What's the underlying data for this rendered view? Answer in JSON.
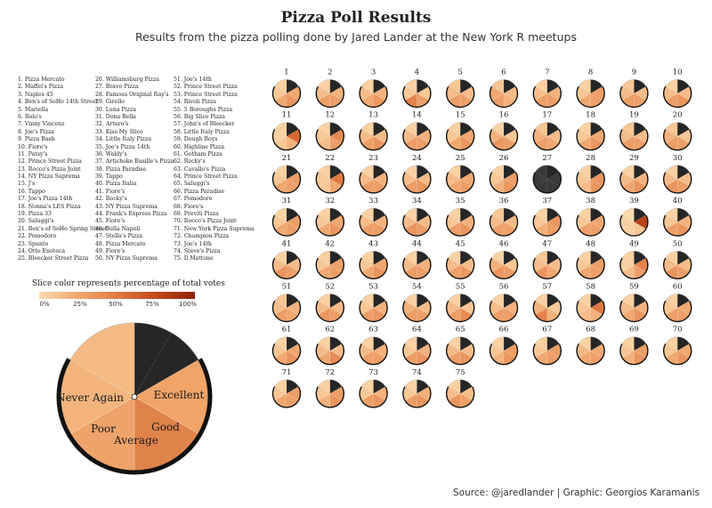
{
  "title": "Pizza Poll Results",
  "subtitle": "Results from the pizza polling done by Jared Lander at the New York R meetups",
  "caption": "Source: @jaredlander | Graphic: Georgios Karamanis",
  "legend": {
    "title": "Slice color represents percentage of total votes",
    "ticks": [
      "0%",
      "25%",
      "50%",
      "75%",
      "100%"
    ],
    "colors": [
      "#fddbb0",
      "#f0a870",
      "#e17a42",
      "#c24a1c",
      "#8f2206"
    ]
  },
  "colors": {
    "empty": "#262626",
    "low": "#fddbb0",
    "high": "#8f2206"
  },
  "places": [
    "1. Pizza Mercato",
    "2. Maffei's Pizza",
    "3. Naples 45",
    "4. Ben's of SoHo 14th Street",
    "5. Mariella",
    "6. Rolo's",
    "7. Vinny Vincenz",
    "8. Joe's Pizza",
    "9. Pizza Bash",
    "10. Fiore's",
    "11. Patsy's",
    "12. Prince Street Pizza",
    "13. Rocco's Pizza Joint",
    "14. NY Pizza Suprema",
    "15. J's",
    "16. Tappo",
    "17. Joe's Pizza 14th",
    "18. Nonna's LES Pizza",
    "19. Pizza 33",
    "20. Saluggi's",
    "21. Ben's of SoHo Spring Street",
    "22. Pomodoro",
    "23. Spunto",
    "24. Otto Enoteca",
    "25. Bleecker Street Pizza",
    "26. Williamsburg Pizza",
    "27. Bravo Pizza",
    "28. Famous Original Ray's",
    "29. Girello",
    "30. Luna Pizza",
    "31. Dona Bella",
    "32. Arturo's",
    "33. Kiss My Slice",
    "34. Little Italy Pizza",
    "35. Joe's Pizza 14th",
    "36. Waldy's",
    "37. Artichoke Basille's Pizza",
    "38. Pizza Paradise",
    "39. Tappo",
    "40. Pizza Italia",
    "41. Fiore's",
    "42. Rocky's",
    "43. NY Pizza Suprema",
    "44. Frank's Express Pizza",
    "45. Fiore's",
    "46. Bella Napoli",
    "47. Stella's Pizza",
    "48. Pizza Mercato",
    "49. Fiore's",
    "50. NY Pizza Suprema",
    "51. Joe's 14th",
    "52. Prince Street Pizza",
    "53. Prince Street Pizza",
    "54. Rivoli Pizza",
    "55. 5 Boroughs Pizza",
    "56. Big Slice Pizza",
    "57. John's of Bleecker",
    "58. Little Italy Pizza",
    "59. Dough Boys",
    "60. Highline Pizza",
    "61. Gotham Pizza",
    "62. Rocky's",
    "63. Cavallo's Pizza",
    "64. Prince Street Pizza",
    "65. Saluggi's",
    "66. Pizza Paradise",
    "67. Pomodoro",
    "68. Fiore's",
    "69. Previti Pizza",
    "70. Rocco's Pizza Joint",
    "71. New York Pizza Suprema",
    "72. Champion Pizza",
    "73. Joe's 14th",
    "74. Steve's Pizza",
    "75. Il Mattone"
  ],
  "key_pie": {
    "labels": {
      "excellent": "Excellent",
      "good": "Good",
      "average": "Average",
      "poor": "Poor",
      "never_again": "Never Again"
    }
  },
  "chart_data": {
    "type": "pie",
    "categories": [
      "Excellent",
      "Good",
      "Average",
      "Poor",
      "Never Again"
    ],
    "pies": [
      {
        "n": 1,
        "values": [
          0.25,
          0.35,
          0.25,
          0.1,
          0.05
        ]
      },
      {
        "n": 2,
        "values": [
          0.2,
          0.3,
          0.3,
          0.15,
          0.05
        ]
      },
      {
        "n": 3,
        "values": [
          0.2,
          0.35,
          0.25,
          0.15,
          0.05
        ]
      },
      {
        "n": 4,
        "values": [
          0.1,
          0.3,
          0.45,
          0.1,
          0.05
        ]
      },
      {
        "n": 5,
        "values": [
          0.15,
          0.3,
          0.3,
          0.15,
          0.1
        ]
      },
      {
        "n": 6,
        "values": [
          0.15,
          0.2,
          0.3,
          0.25,
          0.1
        ]
      },
      {
        "n": 7,
        "values": [
          0.2,
          0.3,
          0.3,
          0.15,
          0.05
        ]
      },
      {
        "n": 8,
        "values": [
          0.3,
          0.3,
          0.25,
          0.1,
          0.05
        ]
      },
      {
        "n": 9,
        "values": [
          0.15,
          0.3,
          0.3,
          0.15,
          0.1
        ]
      },
      {
        "n": 10,
        "values": [
          0.15,
          0.35,
          0.3,
          0.15,
          0.05
        ]
      },
      {
        "n": 11,
        "values": [
          0.6,
          0.2,
          0.1,
          0.05,
          0.05
        ]
      },
      {
        "n": 12,
        "values": [
          0.4,
          0.3,
          0.15,
          0.1,
          0.05
        ]
      },
      {
        "n": 13,
        "values": [
          0.15,
          0.35,
          0.3,
          0.15,
          0.05
        ]
      },
      {
        "n": 14,
        "values": [
          0.2,
          0.3,
          0.3,
          0.15,
          0.05
        ]
      },
      {
        "n": 15,
        "values": [
          0.25,
          0.35,
          0.25,
          0.1,
          0.05
        ]
      },
      {
        "n": 16,
        "values": [
          0.1,
          0.3,
          0.35,
          0.2,
          0.05
        ]
      },
      {
        "n": 17,
        "values": [
          0.15,
          0.25,
          0.3,
          0.2,
          0.1
        ]
      },
      {
        "n": 18,
        "values": [
          0.25,
          0.35,
          0.25,
          0.1,
          0.05
        ]
      },
      {
        "n": 19,
        "values": [
          0.15,
          0.3,
          0.3,
          0.15,
          0.1
        ]
      },
      {
        "n": 20,
        "values": [
          0.1,
          0.3,
          0.3,
          0.2,
          0.1
        ]
      },
      {
        "n": 21,
        "values": [
          0.3,
          0.3,
          0.25,
          0.1,
          0.05
        ]
      },
      {
        "n": 22,
        "values": [
          0.5,
          0.25,
          0.1,
          0.1,
          0.05
        ]
      },
      {
        "n": 23,
        "values": [
          0.2,
          0.3,
          0.3,
          0.15,
          0.05
        ]
      },
      {
        "n": 24,
        "values": [
          0.15,
          0.35,
          0.3,
          0.15,
          0.05
        ]
      },
      {
        "n": 25,
        "values": [
          0.25,
          0.3,
          0.25,
          0.15,
          0.05
        ]
      },
      {
        "n": 26,
        "values": [
          0.3,
          0.35,
          0.2,
          0.1,
          0.05
        ]
      },
      {
        "n": 27,
        "values": [
          0,
          0,
          0,
          0,
          0
        ]
      },
      {
        "n": 28,
        "values": [
          0.35,
          0.35,
          0.15,
          0.1,
          0.05
        ]
      },
      {
        "n": 29,
        "values": [
          0.2,
          0.35,
          0.25,
          0.15,
          0.05
        ]
      },
      {
        "n": 30,
        "values": [
          0.15,
          0.3,
          0.35,
          0.15,
          0.05
        ]
      },
      {
        "n": 31,
        "values": [
          0.3,
          0.3,
          0.25,
          0.1,
          0.05
        ]
      },
      {
        "n": 32,
        "values": [
          0.25,
          0.35,
          0.25,
          0.1,
          0.05
        ]
      },
      {
        "n": 33,
        "values": [
          0.2,
          0.3,
          0.3,
          0.15,
          0.05
        ]
      },
      {
        "n": 34,
        "values": [
          0.15,
          0.3,
          0.35,
          0.15,
          0.05
        ]
      },
      {
        "n": 35,
        "values": [
          0.2,
          0.35,
          0.3,
          0.1,
          0.05
        ]
      },
      {
        "n": 36,
        "values": [
          0.15,
          0.3,
          0.3,
          0.15,
          0.1
        ]
      },
      {
        "n": 37,
        "values": [
          0.35,
          0.3,
          0.2,
          0.1,
          0.05
        ]
      },
      {
        "n": 38,
        "values": [
          0.25,
          0.3,
          0.3,
          0.1,
          0.05
        ]
      },
      {
        "n": 39,
        "values": [
          0.8,
          0.1,
          0.05,
          0.05,
          0
        ]
      },
      {
        "n": 40,
        "values": [
          0.2,
          0.35,
          0.3,
          0.1,
          0.05
        ]
      },
      {
        "n": 41,
        "values": [
          0.15,
          0.3,
          0.35,
          0.15,
          0.05
        ]
      },
      {
        "n": 42,
        "values": [
          0.3,
          0.3,
          0.25,
          0.1,
          0.05
        ]
      },
      {
        "n": 43,
        "values": [
          0.25,
          0.35,
          0.25,
          0.1,
          0.05
        ]
      },
      {
        "n": 44,
        "values": [
          0.2,
          0.3,
          0.3,
          0.15,
          0.05
        ]
      },
      {
        "n": 45,
        "values": [
          0.15,
          0.35,
          0.3,
          0.15,
          0.05
        ]
      },
      {
        "n": 46,
        "values": [
          0.1,
          0.3,
          0.35,
          0.2,
          0.05
        ]
      },
      {
        "n": 47,
        "values": [
          0.15,
          0.25,
          0.35,
          0.15,
          0.1
        ]
      },
      {
        "n": 48,
        "values": [
          0.3,
          0.3,
          0.25,
          0.1,
          0.05
        ]
      },
      {
        "n": 49,
        "values": [
          0.45,
          0.3,
          0.15,
          0.05,
          0.05
        ]
      },
      {
        "n": 50,
        "values": [
          0.15,
          0.3,
          0.35,
          0.15,
          0.05
        ]
      },
      {
        "n": 51,
        "values": [
          0.2,
          0.25,
          0.3,
          0.15,
          0.1
        ]
      },
      {
        "n": 52,
        "values": [
          0.15,
          0.3,
          0.35,
          0.15,
          0.05
        ]
      },
      {
        "n": 53,
        "values": [
          0.2,
          0.35,
          0.3,
          0.1,
          0.05
        ]
      },
      {
        "n": 54,
        "values": [
          0.15,
          0.3,
          0.3,
          0.2,
          0.05
        ]
      },
      {
        "n": 55,
        "values": [
          0.1,
          0.4,
          0.3,
          0.15,
          0.05
        ]
      },
      {
        "n": 56,
        "values": [
          0.2,
          0.3,
          0.3,
          0.15,
          0.05
        ]
      },
      {
        "n": 57,
        "values": [
          0.1,
          0.2,
          0.45,
          0.2,
          0.05
        ]
      },
      {
        "n": 58,
        "values": [
          0.5,
          0.2,
          0.15,
          0.1,
          0.05
        ]
      },
      {
        "n": 59,
        "values": [
          0.2,
          0.35,
          0.25,
          0.15,
          0.05
        ]
      },
      {
        "n": 60,
        "values": [
          0.25,
          0.3,
          0.3,
          0.1,
          0.05
        ]
      },
      {
        "n": 61,
        "values": [
          0.25,
          0.35,
          0.25,
          0.1,
          0.05
        ]
      },
      {
        "n": 62,
        "values": [
          0.15,
          0.4,
          0.25,
          0.15,
          0.05
        ]
      },
      {
        "n": 63,
        "values": [
          0.2,
          0.3,
          0.3,
          0.15,
          0.05
        ]
      },
      {
        "n": 64,
        "values": [
          0.2,
          0.35,
          0.3,
          0.1,
          0.05
        ]
      },
      {
        "n": 65,
        "values": [
          0.15,
          0.35,
          0.3,
          0.15,
          0.05
        ]
      },
      {
        "n": 66,
        "values": [
          0.3,
          0.35,
          0.2,
          0.1,
          0.05
        ]
      },
      {
        "n": 67,
        "values": [
          0.3,
          0.3,
          0.25,
          0.1,
          0.05
        ]
      },
      {
        "n": 68,
        "values": [
          0.25,
          0.3,
          0.25,
          0.15,
          0.05
        ]
      },
      {
        "n": 69,
        "values": [
          0.3,
          0.35,
          0.2,
          0.1,
          0.05
        ]
      },
      {
        "n": 70,
        "values": [
          0.25,
          0.35,
          0.25,
          0.1,
          0.05
        ]
      },
      {
        "n": 71,
        "values": [
          0.3,
          0.3,
          0.25,
          0.1,
          0.05
        ]
      },
      {
        "n": 72,
        "values": [
          0.3,
          0.35,
          0.2,
          0.1,
          0.05
        ]
      },
      {
        "n": 73,
        "values": [
          0.2,
          0.35,
          0.3,
          0.1,
          0.05
        ]
      },
      {
        "n": 74,
        "values": [
          0.2,
          0.35,
          0.3,
          0.1,
          0.05
        ]
      },
      {
        "n": 75,
        "values": [
          0.15,
          0.3,
          0.35,
          0.15,
          0.05
        ]
      }
    ]
  }
}
